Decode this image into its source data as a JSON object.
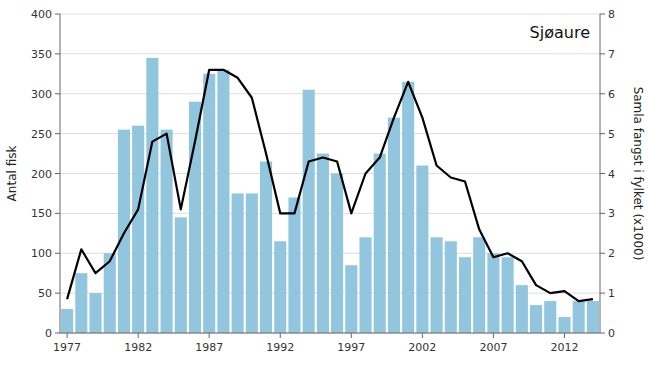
{
  "chart_data": {
    "type": "bar",
    "title": "Sjøaure",
    "ylabel": "Antal fisk",
    "y2label": "Samla fangst i fylket (x1000)",
    "x": [
      1977,
      1978,
      1979,
      1980,
      1981,
      1982,
      1983,
      1984,
      1985,
      1986,
      1987,
      1988,
      1989,
      1990,
      1991,
      1992,
      1993,
      1994,
      1995,
      1996,
      1997,
      1998,
      1999,
      2000,
      2001,
      2002,
      2003,
      2004,
      2005,
      2006,
      2007,
      2008,
      2009,
      2010,
      2011,
      2012,
      2013,
      2014
    ],
    "series": [
      {
        "type": "bar",
        "color": "#92C5DE",
        "values": [
          30,
          75,
          50,
          100,
          255,
          260,
          345,
          255,
          145,
          290,
          325,
          330,
          175,
          175,
          215,
          115,
          170,
          305,
          225,
          200,
          85,
          120,
          225,
          270,
          315,
          210,
          120,
          115,
          95,
          120,
          100,
          95,
          60,
          35,
          40,
          20,
          40,
          40
        ]
      },
      {
        "type": "line",
        "axis": "y2",
        "color": "#000000",
        "values": [
          0.85,
          2.1,
          1.5,
          1.8,
          2.5,
          3.1,
          4.8,
          5.0,
          3.1,
          4.8,
          6.6,
          6.6,
          6.4,
          5.9,
          4.5,
          3.0,
          3.0,
          4.3,
          4.4,
          4.3,
          3.0,
          4.0,
          4.4,
          5.4,
          6.3,
          5.4,
          4.2,
          3.9,
          3.8,
          2.6,
          1.9,
          2.0,
          1.8,
          1.2,
          1.0,
          1.05,
          0.8,
          0.85
        ]
      }
    ],
    "xlim": [
      1976.5,
      2014.5
    ],
    "xticks": [
      1977,
      1982,
      1987,
      1992,
      1997,
      2002,
      2007,
      2012
    ],
    "ylim": [
      0,
      400
    ],
    "yticks": [
      0,
      50,
      100,
      150,
      200,
      250,
      300,
      350,
      400
    ],
    "y2lim": [
      0,
      8
    ],
    "y2ticks": [
      0,
      1,
      2,
      3,
      4,
      5,
      6,
      7,
      8
    ],
    "grid": true
  }
}
